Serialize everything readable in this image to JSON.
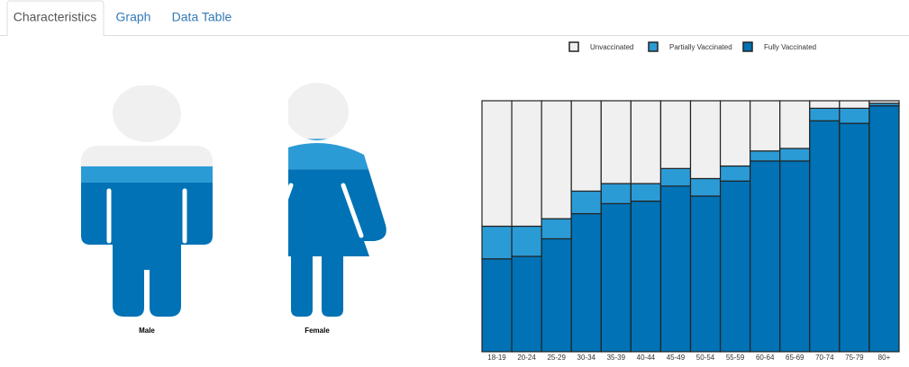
{
  "tabs": [
    "Characteristics",
    "Graph",
    "Data Table"
  ],
  "figures": [
    {
      "label": "Male",
      "values": [
        35,
        7,
        58
      ]
    },
    {
      "label": "Female",
      "values": [
        24,
        13,
        63
      ]
    }
  ],
  "chart_data": {
    "type": "stacked-bar",
    "categories": [
      "18-19",
      "20-24",
      "25-29",
      "30-34",
      "35-39",
      "40-44",
      "45-49",
      "50-54",
      "55-59",
      "60-64",
      "65-69",
      "70-74",
      "75-79",
      "80+"
    ],
    "series": [
      {
        "name": "Unvaccinated",
        "color": "#f0f0f0",
        "values": [
          50,
          50,
          47,
          36,
          33,
          33,
          27,
          31,
          26,
          20,
          19,
          3,
          3,
          1
        ]
      },
      {
        "name": "Partially Vaccinated",
        "color": "#2b9bd6",
        "values": [
          13,
          12,
          8,
          9,
          8,
          7,
          7,
          7,
          6,
          4,
          5,
          5,
          6,
          1
        ]
      },
      {
        "name": "Fully Vaccinated",
        "color": "#0072b5",
        "values": [
          37,
          38,
          45,
          55,
          59,
          60,
          66,
          62,
          68,
          76,
          76,
          92,
          91,
          98
        ]
      }
    ],
    "ylim": [
      0,
      100
    ]
  }
}
